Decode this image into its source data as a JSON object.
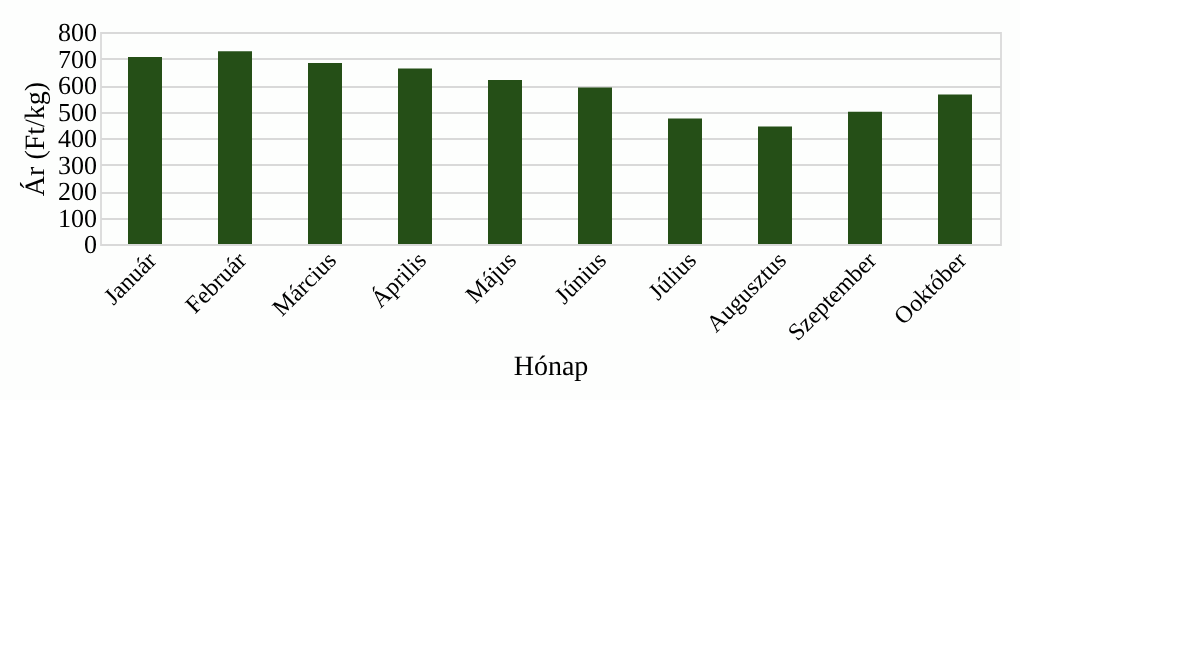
{
  "chart_data": {
    "type": "bar",
    "xlabel": "Hónap",
    "ylabel": "Ár (Ft/kg)",
    "categories": [
      "Január",
      "Február",
      "Március",
      "Április",
      "Május",
      "Június",
      "Július",
      "Augusztus",
      "Szeptember",
      "Ooktóber"
    ],
    "values": [
      706,
      727,
      683,
      662,
      619,
      591,
      474,
      443,
      499,
      564
    ],
    "color": "#254f17",
    "ylim": [
      0,
      800
    ],
    "yticks": [
      0,
      100,
      200,
      300,
      400,
      500,
      600,
      700,
      800
    ],
    "grid": "y"
  }
}
